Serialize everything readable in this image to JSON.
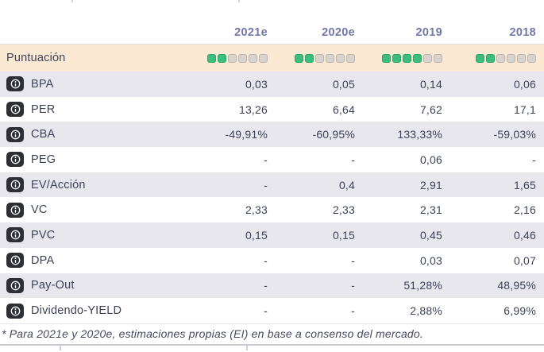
{
  "colors": {
    "header-text": "#7277a8",
    "body-text": "#3e4257",
    "score-bg": "#fbe9d4",
    "alt-bg": "#e8e7ee",
    "icon-bg": "#2e2e35",
    "score-green": "#3dbc7e",
    "score-green-border": "#27a668",
    "score-empty": "#d9d3cf",
    "score-empty-border": "#bcb3ad",
    "line-light": "#dcdce4",
    "footnote-text": "#45495f"
  },
  "table": {
    "columns": [
      "2021e",
      "2020e",
      "2019",
      "2018"
    ],
    "score_row": {
      "label": "Puntuación",
      "max": 6,
      "scores": [
        2,
        2,
        4,
        2
      ]
    },
    "rows": [
      {
        "label": "BPA",
        "values": [
          "0,03",
          "0,05",
          "0,14",
          "0,06"
        ]
      },
      {
        "label": "PER",
        "values": [
          "13,26",
          "6,64",
          "7,62",
          "17,1"
        ]
      },
      {
        "label": "CBA",
        "values": [
          "-49,91%",
          "-60,95%",
          "133,33%",
          "-59,03%"
        ]
      },
      {
        "label": "PEG",
        "values": [
          "-",
          "-",
          "0,06",
          "-"
        ]
      },
      {
        "label": "EV/Acción",
        "values": [
          "-",
          "0,4",
          "2,91",
          "1,65"
        ]
      },
      {
        "label": "VC",
        "values": [
          "2,33",
          "2,33",
          "2,31",
          "2,16"
        ]
      },
      {
        "label": "PVC",
        "values": [
          "0,15",
          "0,15",
          "0,45",
          "0,46"
        ]
      },
      {
        "label": "DPA",
        "values": [
          "-",
          "-",
          "0,03",
          "0,07"
        ]
      },
      {
        "label": "Pay-Out",
        "values": [
          "-",
          "-",
          "51,28%",
          "48,95%"
        ]
      },
      {
        "label": "Dividendo-YIELD",
        "values": [
          "-",
          "-",
          "2,88%",
          "6,99%"
        ]
      }
    ],
    "footnote": "* Para 2021e y 2020e, estimaciones propias (EI) en base a consenso del mercado."
  }
}
